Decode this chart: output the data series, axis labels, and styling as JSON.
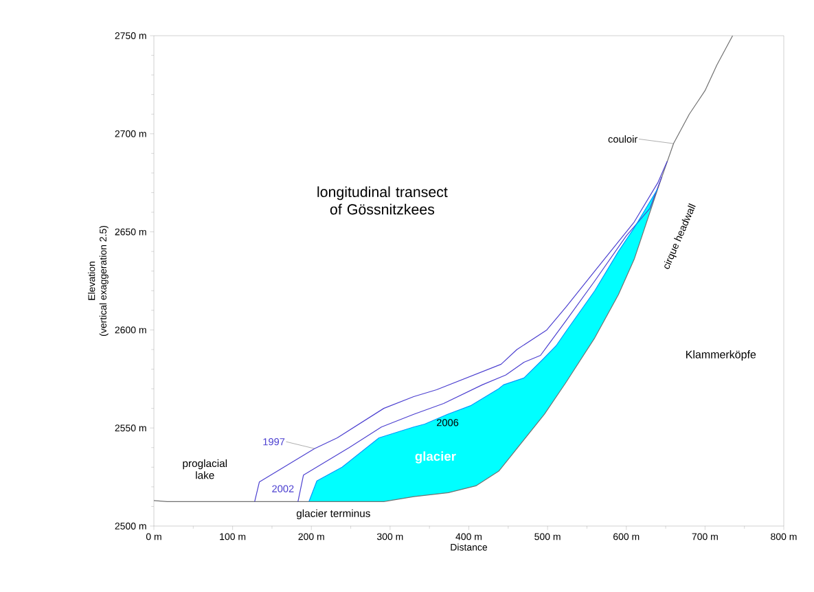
{
  "chart_data": {
    "type": "line",
    "title": "longitudinal transect of Gössnitzkees",
    "xlabel": "Distance",
    "ylabel": "Elevation",
    "xlim": [
      0,
      800
    ],
    "ylim": [
      2500,
      2750
    ],
    "xticks": [
      {
        "value": 0,
        "label": "0 m"
      },
      {
        "value": 100,
        "label": "100 m"
      },
      {
        "value": 200,
        "label": "200 m"
      },
      {
        "value": 300,
        "label": "300 m"
      },
      {
        "value": 400,
        "label": "400 m"
      },
      {
        "value": 500,
        "label": "500 m"
      },
      {
        "value": 600,
        "label": "600 m"
      },
      {
        "value": 700,
        "label": "700 m"
      },
      {
        "value": 800,
        "label": "800 m"
      }
    ],
    "yticks": [
      {
        "value": 2500,
        "label": "2500 m"
      },
      {
        "value": 2550,
        "label": "2550 m"
      },
      {
        "value": 2600,
        "label": "2600 m"
      },
      {
        "value": 2650,
        "label": "2650 m"
      },
      {
        "value": 2700,
        "label": "2700 m"
      },
      {
        "value": 2750,
        "label": "2750 m"
      }
    ],
    "series": [
      {
        "color": "#707070",
        "x": [
          0,
          17,
          197,
          292,
          330,
          374,
          409,
          438,
          496,
          523,
          560,
          590,
          610,
          640,
          660,
          680,
          700,
          715,
          735
        ],
        "values": [
          2513,
          2512.5,
          2512.5,
          2512.5,
          2515,
          2517,
          2520.5,
          2528,
          2557,
          2573,
          2596,
          2618,
          2636,
          2672,
          2695,
          2710,
          2722,
          2735,
          2750
        ]
      },
      {
        "name": "1997",
        "color": "#4b3fd0",
        "x": [
          128,
          134,
          204,
          233,
          292,
          330,
          359,
          441,
          461,
          499,
          523,
          560,
          590,
          610,
          640,
          652
        ],
        "values": [
          2512.5,
          2522.5,
          2539.5,
          2545,
          2560,
          2566,
          2569.5,
          2582.5,
          2590,
          2600,
          2611.5,
          2630,
          2645,
          2655,
          2675,
          2686
        ]
      },
      {
        "name": "2002",
        "color": "#4b3fd0",
        "x": [
          183,
          190,
          248,
          289,
          330,
          368,
          417,
          447,
          470,
          491,
          523,
          560,
          600,
          630,
          645
        ],
        "values": [
          2512.5,
          2526,
          2540,
          2550.5,
          2557,
          2562.5,
          2572,
          2577,
          2583.5,
          2587,
          2604.5,
          2625,
          2648,
          2662,
          2678
        ]
      },
      {
        "type": "area",
        "name": "2006",
        "color": "#00ffff",
        "x": [
          197,
          207,
          239,
          286,
          330,
          344,
          373,
          403,
          438,
          444,
          470,
          494,
          511,
          523,
          560,
          590,
          610,
          640,
          610,
          590,
          560,
          523,
          496,
          438,
          409,
          374,
          330,
          292
        ],
        "values": [
          2512.5,
          2523,
          2530,
          2545,
          2550.5,
          2552,
          2557,
          2561.5,
          2570,
          2572,
          2575.5,
          2585,
          2592,
          2599,
          2620,
          2640,
          2652,
          2672,
          2636,
          2618,
          2596,
          2573,
          2557,
          2528,
          2520.5,
          2517,
          2515,
          2512.5
        ]
      }
    ],
    "annotations": [
      "(vertical exaggeration 2.5)",
      "proglacial lake",
      "glacier terminus",
      "glacier",
      {
        "text": "couloir",
        "x": 660,
        "y": 2695
      },
      "cirque headwall",
      "Klammerköpfe"
    ]
  }
}
